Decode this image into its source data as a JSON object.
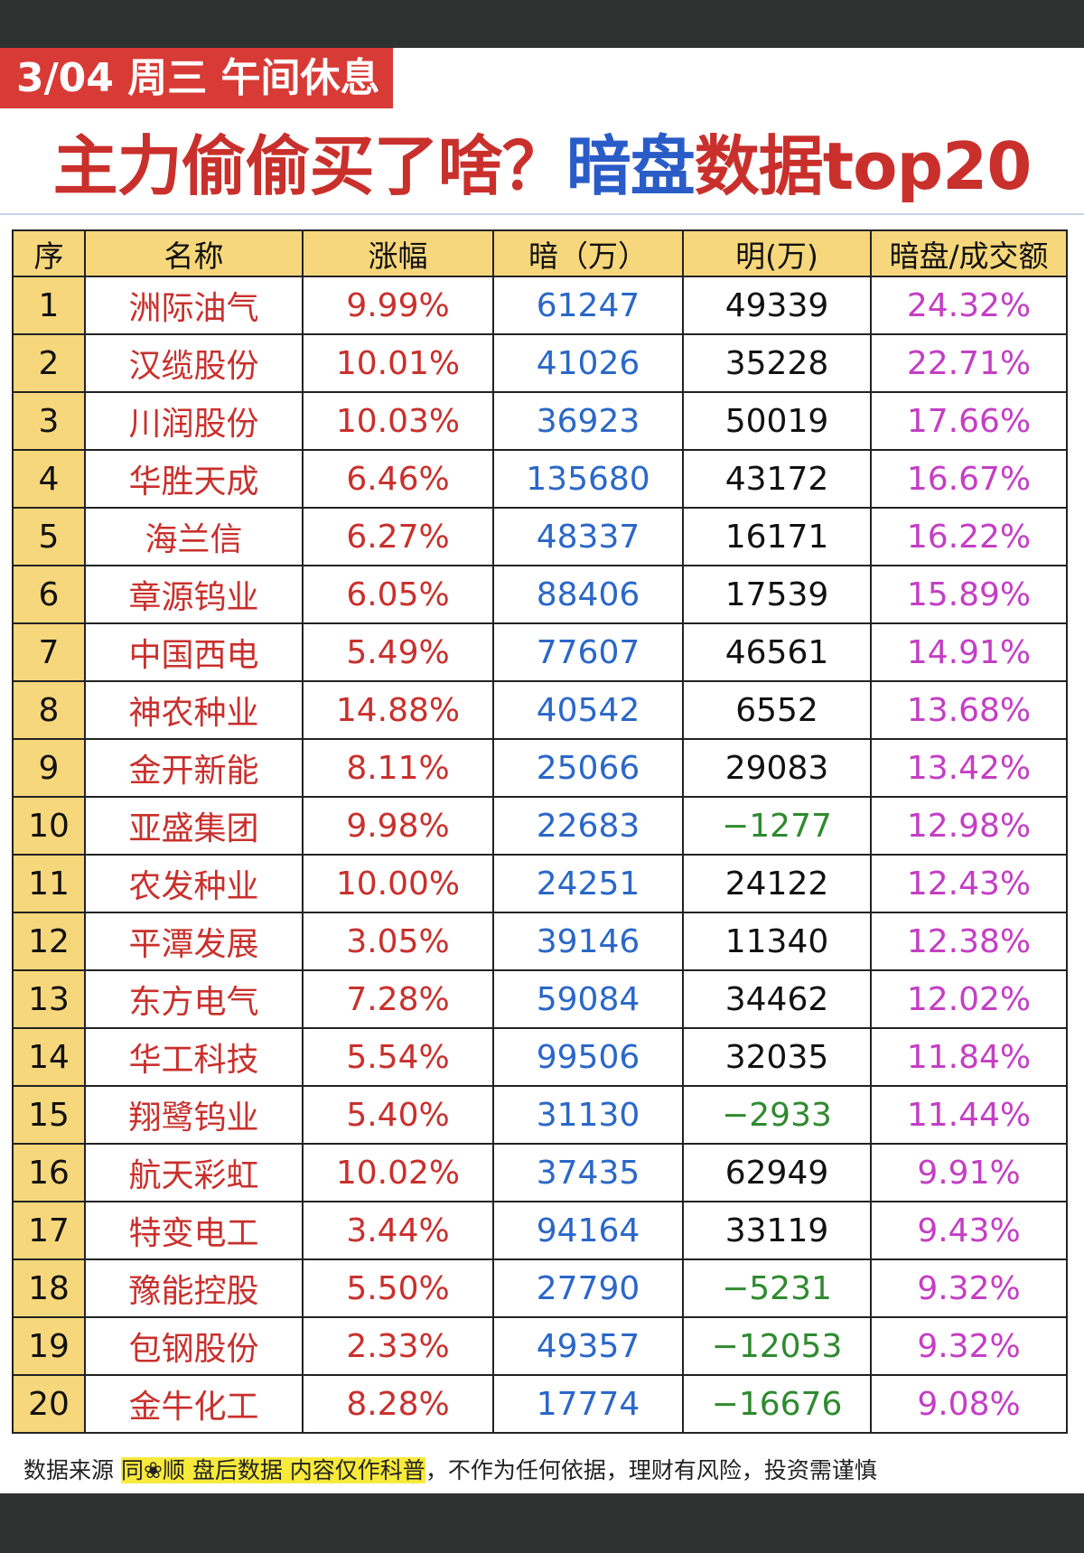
{
  "header": {
    "label": "3/04 周三 午间休息",
    "title": [
      "主力偷偷买了啥？",
      "暗盘",
      "数据top20"
    ]
  },
  "table": {
    "columns": [
      "序",
      "名称",
      "涨幅",
      "暗（万）",
      "明(万)",
      "暗盘/成交额"
    ],
    "rows": [
      [
        "1",
        "洲际油气",
        "9.99%",
        "61247",
        "49339",
        "24.32%"
      ],
      [
        "2",
        "汉缆股份",
        "10.01%",
        "41026",
        "35228",
        "22.71%"
      ],
      [
        "3",
        "川润股份",
        "10.03%",
        "36923",
        "50019",
        "17.66%"
      ],
      [
        "4",
        "华胜天成",
        "6.46%",
        "135680",
        "43172",
        "16.67%"
      ],
      [
        "5",
        "海兰信",
        "6.27%",
        "48337",
        "16171",
        "16.22%"
      ],
      [
        "6",
        "章源钨业",
        "6.05%",
        "88406",
        "17539",
        "15.89%"
      ],
      [
        "7",
        "中国西电",
        "5.49%",
        "77607",
        "46561",
        "14.91%"
      ],
      [
        "8",
        "神农种业",
        "14.88%",
        "40542",
        "6552",
        "13.68%"
      ],
      [
        "9",
        "金开新能",
        "8.11%",
        "25066",
        "29083",
        "13.42%"
      ],
      [
        "10",
        "亚盛集团",
        "9.98%",
        "22683",
        "−1277",
        "12.98%"
      ],
      [
        "11",
        "农发种业",
        "10.00%",
        "24251",
        "24122",
        "12.43%"
      ],
      [
        "12",
        "平潭发展",
        "3.05%",
        "39146",
        "11340",
        "12.38%"
      ],
      [
        "13",
        "东方电气",
        "7.28%",
        "59084",
        "34462",
        "12.02%"
      ],
      [
        "14",
        "华工科技",
        "5.54%",
        "99506",
        "32035",
        "11.84%"
      ],
      [
        "15",
        "翔鹭钨业",
        "5.40%",
        "31130",
        "−2933",
        "11.44%"
      ],
      [
        "16",
        "航天彩虹",
        "10.02%",
        "37435",
        "62949",
        "9.91%"
      ],
      [
        "17",
        "特变电工",
        "3.44%",
        "94164",
        "33119",
        "9.43%"
      ],
      [
        "18",
        "豫能控股",
        "5.50%",
        "27790",
        "−5231",
        "9.32%"
      ],
      [
        "19",
        "包钢股份",
        "2.33%",
        "49357",
        "−12053",
        "9.32%"
      ],
      [
        "20",
        "金牛化工",
        "8.28%",
        "17774",
        "−16676",
        "9.08%"
      ]
    ]
  },
  "footer": {
    "source": "数据来源",
    "highlight": "同❀顺 盘后数据 内容仅作科普",
    "note": "，不作为任何依据，理财有风险，投资需谨慎"
  }
}
